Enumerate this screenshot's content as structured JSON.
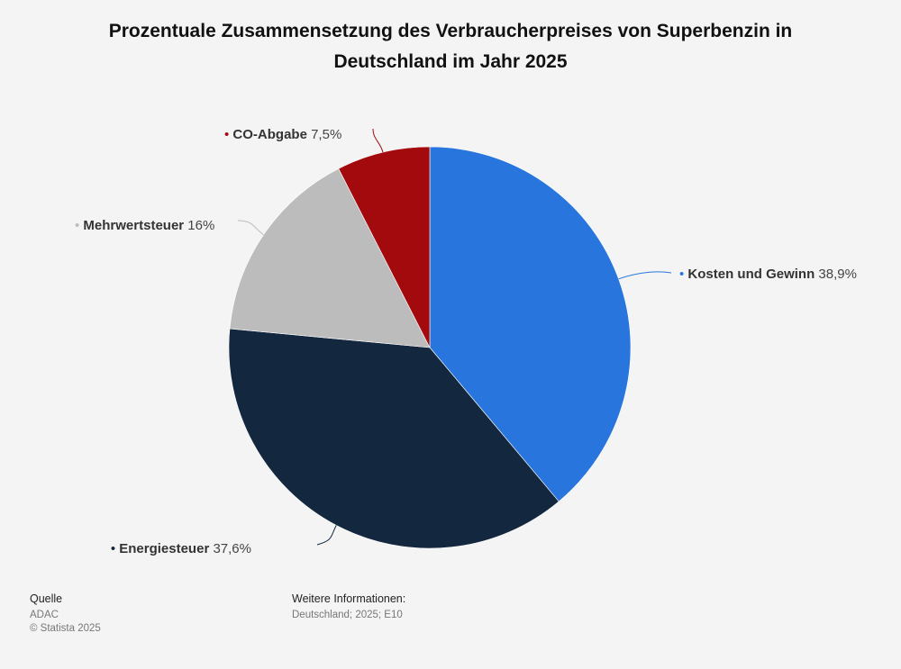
{
  "chart_data": {
    "type": "pie",
    "title": "Prozentuale Zusammensetzung des Verbraucherpreises von Superbenzin in Deutschland im Jahr 2025",
    "slices": [
      {
        "name": "Kosten und Gewinn",
        "value": 38.9,
        "value_label": "38,9%",
        "color": "#2876dd"
      },
      {
        "name": "Energiesteuer",
        "value": 37.6,
        "value_label": "37,6%",
        "color": "#13273e"
      },
      {
        "name": "Mehrwertsteuer",
        "value": 16,
        "value_label": "16%",
        "color": "#bcbcbc"
      },
      {
        "name": "CO-Abgabe",
        "value": 7.5,
        "value_label": "7,5%",
        "color": "#a30a0d"
      }
    ]
  },
  "footer": {
    "source_heading": "Quelle",
    "source": "ADAC",
    "copyright": "© Statista 2025",
    "info_heading": "Weitere Informationen:",
    "info": "Deutschland; 2025; E10"
  }
}
